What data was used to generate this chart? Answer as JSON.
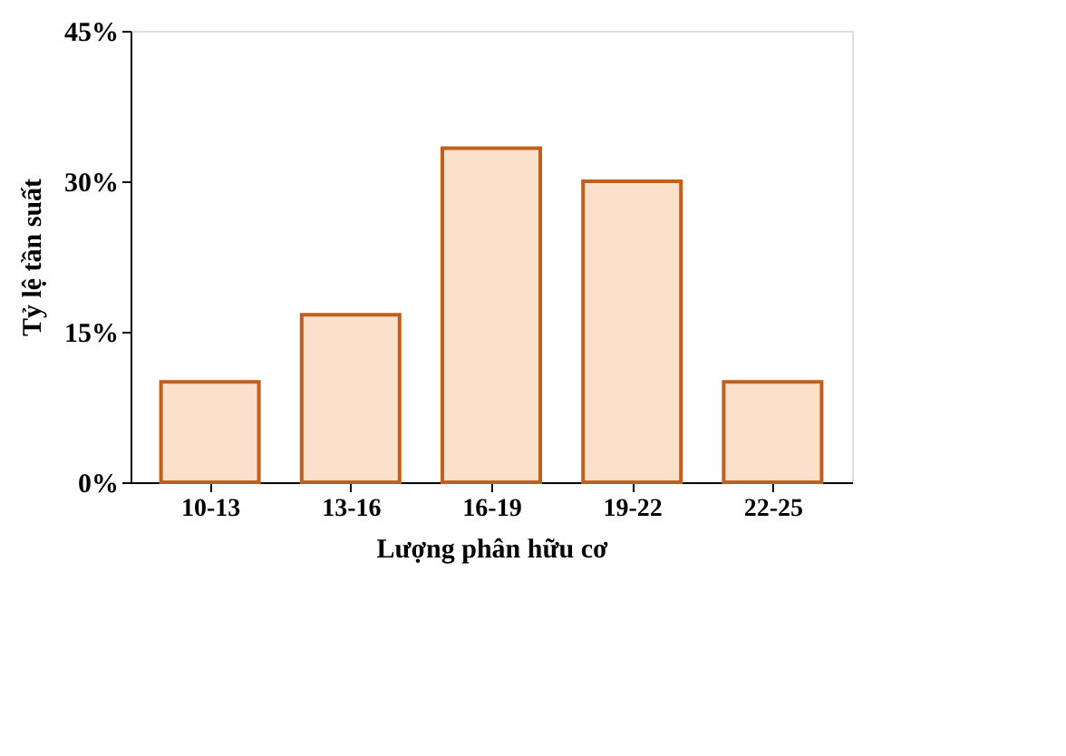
{
  "chart_data": {
    "type": "bar",
    "xlabel": "Lượng phân hữu cơ",
    "ylabel": "Tỷ lệ tần suất",
    "categories": [
      "10-13",
      "13-16",
      "16-19",
      "19-22",
      "22-25"
    ],
    "values": [
      10,
      16.7,
      33.3,
      30,
      10
    ],
    "color": "#c0601e",
    "ylim": [
      0,
      45
    ],
    "yticks": [
      {
        "value": 0,
        "label": "0%"
      },
      {
        "value": 15,
        "label": "15%"
      },
      {
        "value": 30,
        "label": "30%"
      },
      {
        "value": 45,
        "label": "45%"
      }
    ],
    "grid": false
  }
}
